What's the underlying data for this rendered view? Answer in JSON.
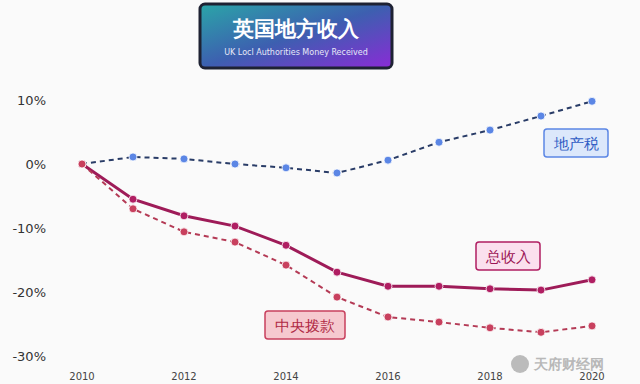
{
  "chart_data": {
    "type": "line",
    "title": "英国地方收入",
    "subtitle": "UK Locl Authorities Money Received",
    "x": [
      2010,
      2011,
      2012,
      2013,
      2014,
      2015,
      2016,
      2017,
      2018,
      2019,
      2020
    ],
    "xlim": [
      2010,
      2020
    ],
    "xticks": [
      2010,
      2012,
      2014,
      2016,
      2018,
      2020
    ],
    "ylim": [
      -30,
      10
    ],
    "yticks": [
      {
        "value": 10,
        "label": "10%"
      },
      {
        "value": 0,
        "label": "0%"
      },
      {
        "value": -10,
        "label": "-10%"
      },
      {
        "value": -20,
        "label": "-20%"
      },
      {
        "value": -30,
        "label": "-30%"
      }
    ],
    "grid": false,
    "annotations": [
      "天府财经网"
    ],
    "series": [
      {
        "name": "地产税",
        "color": "#5b86e5",
        "line_style": "dashed",
        "marker": "circle",
        "values": [
          0,
          1.1,
          0.8,
          0,
          -0.6,
          -1.4,
          0.6,
          3.4,
          5.3,
          7.5,
          9.8
        ]
      },
      {
        "name": "总收入",
        "color": "#b01e62",
        "line_style": "solid",
        "marker": "circle",
        "values": [
          0,
          -5.5,
          -8.1,
          -9.7,
          -12.7,
          -16.9,
          -19.1,
          -19.1,
          -19.5,
          -19.7,
          -18.1
        ]
      },
      {
        "name": "中央拨款",
        "color": "#c8405e",
        "line_style": "dashed",
        "marker": "circle",
        "values": [
          0,
          -7.0,
          -10.6,
          -12.2,
          -15.8,
          -20.8,
          -23.9,
          -24.7,
          -25.6,
          -26.3,
          -25.3
        ]
      }
    ]
  }
}
